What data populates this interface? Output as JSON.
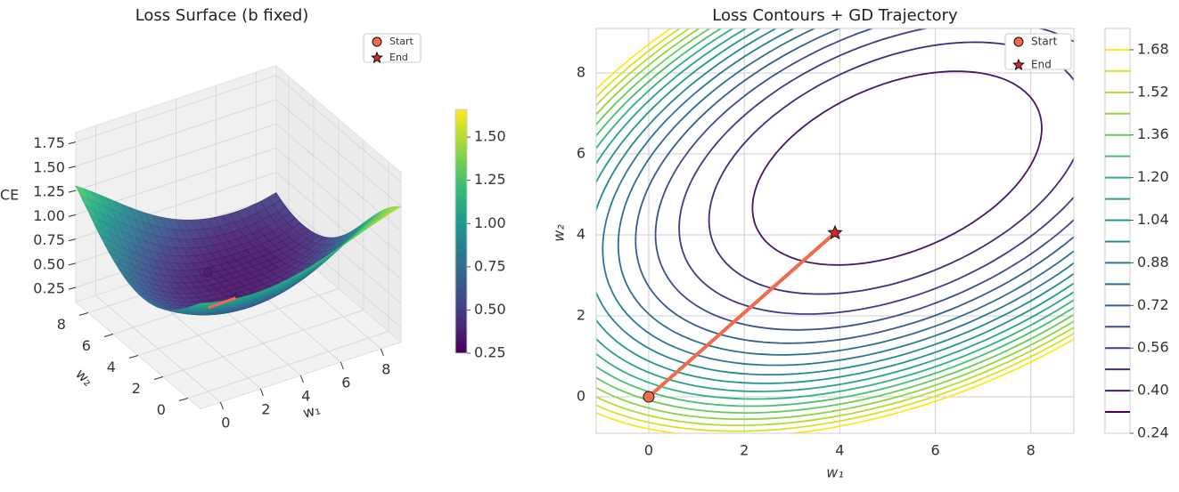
{
  "chart_data": [
    {
      "type": "surface3d",
      "title": "Loss Surface (b fixed)",
      "xlabel": "w₁",
      "ylabel": "w₂",
      "zlabel": "CE",
      "xlim": [
        -1,
        9
      ],
      "ylim": [
        -1,
        9
      ],
      "zlim": [
        0.1,
        1.85
      ],
      "xticks": [
        0,
        2,
        4,
        6,
        8
      ],
      "yticks": [
        0,
        2,
        4,
        6,
        8
      ],
      "zticks": [
        0.25,
        {
          "value": 0.5,
          "label": "0.50"
        },
        0.75,
        {
          "value": 1,
          "label": "1.00"
        },
        1.25,
        {
          "value": 1.5,
          "label": "1.50"
        },
        1.75
      ],
      "colormap": "viridis",
      "colorbar": {
        "lim": [
          0.25,
          1.66
        ],
        "ticks": [
          0.25,
          {
            "value": 0.5,
            "label": "0.50"
          },
          0.75,
          {
            "value": 1,
            "label": "1.00"
          },
          1.25,
          {
            "value": 1.5,
            "label": "1.50"
          }
        ]
      },
      "path": {
        "x": [
          0,
          3.9
        ],
        "y": [
          0,
          4.05
        ],
        "color": "#f4694c"
      },
      "series": [
        {
          "name": "Start",
          "color": "#f4694c",
          "marker": "circle",
          "x": [
            0
          ],
          "y": [
            0
          ]
        },
        {
          "name": "End",
          "color": "#d62728",
          "marker": "star",
          "x": [
            3.9
          ],
          "y": [
            4.05
          ]
        }
      ]
    },
    {
      "type": "contour",
      "title": "Loss Contours + GD Trajectory",
      "xlabel": "w₁",
      "ylabel": "w₂",
      "xlim": [
        -1.1,
        8.9
      ],
      "ylim": [
        -0.9,
        9.1
      ],
      "xticks": [
        0,
        2,
        4,
        6,
        8
      ],
      "yticks": [
        0,
        2,
        4,
        6,
        8
      ],
      "grid": true,
      "colormap": "viridis",
      "levels": [
        0.32,
        0.4,
        0.48,
        0.56,
        0.64,
        0.72,
        0.8,
        0.88,
        0.96,
        1.04,
        1.12,
        1.2,
        1.28,
        1.36,
        1.44,
        1.52,
        1.6,
        1.68
      ],
      "colorbar": {
        "lim": [
          0.24,
          1.76
        ],
        "ticks": [
          0.24,
          {
            "value": 0.4,
            "label": "0.40"
          },
          0.56,
          0.72,
          0.88,
          1.04,
          {
            "value": 1.2,
            "label": "1.20"
          },
          1.36,
          1.52,
          1.68
        ]
      },
      "path": {
        "x": [
          0,
          3.9
        ],
        "y": [
          0,
          4.05
        ],
        "color": "#f4694c"
      },
      "series": [
        {
          "name": "Start",
          "color": "#f4694c",
          "marker": "circle",
          "x": [
            0
          ],
          "y": [
            0
          ]
        },
        {
          "name": "End",
          "color": "#d62728",
          "marker": "star",
          "x": [
            3.9
          ],
          "y": [
            4.05
          ]
        }
      ]
    }
  ]
}
